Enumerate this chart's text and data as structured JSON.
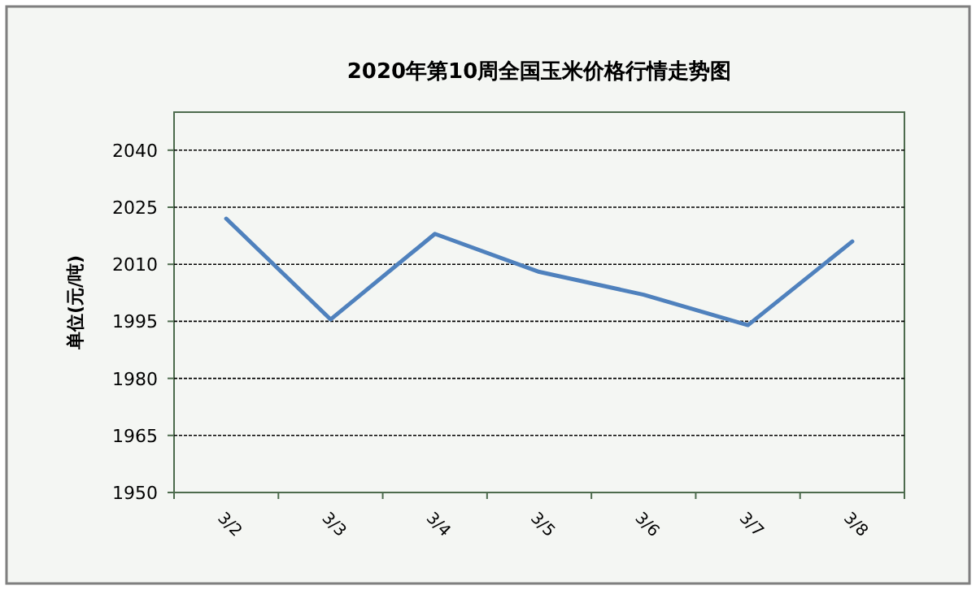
{
  "chart_data": {
    "type": "line",
    "title": "2020年第10周全国玉米价格行情走势图",
    "ylabel": "单位(元/吨)",
    "categories": [
      "3/2",
      "3/3",
      "3/4",
      "3/5",
      "3/6",
      "3/7",
      "3/8"
    ],
    "series": [
      {
        "color": "#4f81bd",
        "values": [
          2022,
          1995.5,
          2018,
          2008,
          2002,
          1994,
          2016
        ]
      }
    ],
    "ylim": [
      1950,
      2050
    ],
    "yticks": [
      1950,
      1965,
      1980,
      1995,
      2010,
      2025,
      2040
    ],
    "grid": "y",
    "marker": "none",
    "line_style": "solid"
  }
}
